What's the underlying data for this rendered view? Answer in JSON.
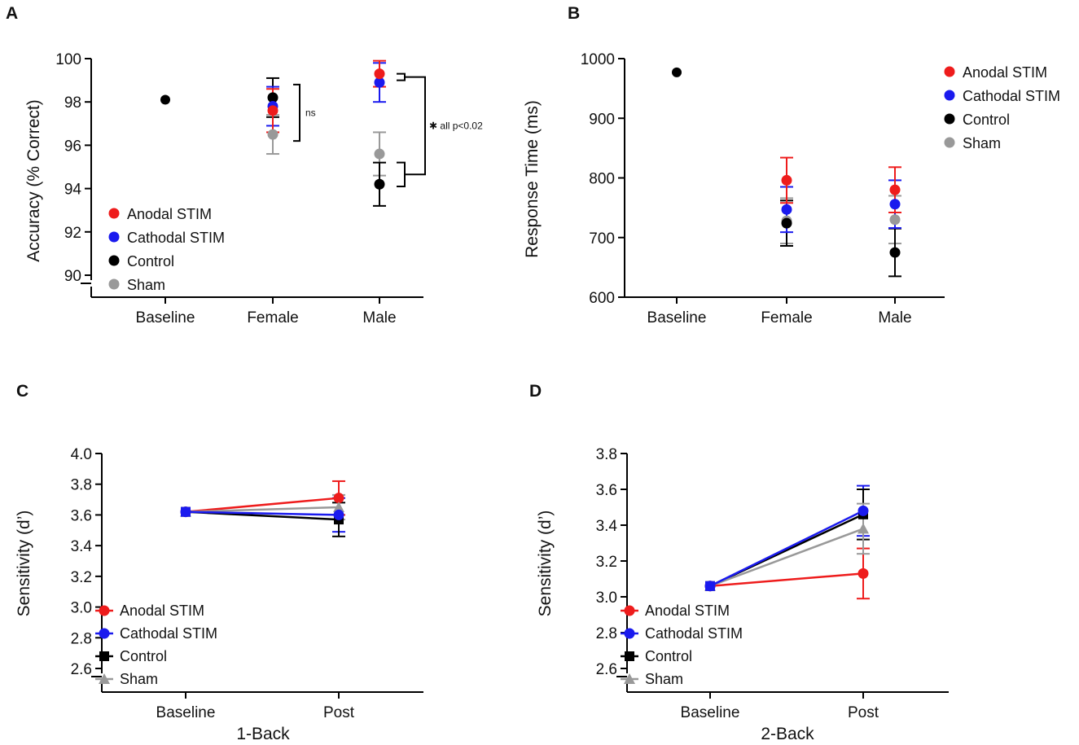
{
  "colors": {
    "Anodal STIM": "#ee1c1c",
    "Cathodal STIM": "#1a1aee",
    "Control": "#000000",
    "Sham": "#999999"
  },
  "chart_data": [
    {
      "panel": "A",
      "type": "scatter",
      "ylabel": "Accuracy (% Correct)",
      "xlabel": "",
      "categories": [
        "Baseline",
        "Female",
        "Male"
      ],
      "ylim": [
        90,
        100
      ],
      "yticks": [
        90,
        92,
        94,
        96,
        98,
        100
      ],
      "axis_break": true,
      "legend": [
        "Anodal STIM",
        "Cathodal STIM",
        "Control",
        "Sham"
      ],
      "legend_position": "bottom-left",
      "baseline": {
        "value": 98.1
      },
      "series": [
        {
          "name": "Anodal STIM",
          "values": [
            null,
            97.6,
            99.3
          ],
          "errors": [
            null,
            1.0,
            0.6
          ]
        },
        {
          "name": "Cathodal STIM",
          "values": [
            null,
            97.8,
            98.9
          ],
          "errors": [
            null,
            0.9,
            0.9
          ]
        },
        {
          "name": "Control",
          "values": [
            null,
            98.2,
            94.2
          ],
          "errors": [
            null,
            0.9,
            1.0
          ]
        },
        {
          "name": "Sham",
          "values": [
            null,
            96.5,
            95.6
          ],
          "errors": [
            null,
            0.9,
            1.0
          ]
        }
      ],
      "annotations": [
        {
          "text": "ns",
          "category": "Female"
        },
        {
          "text": "✱ all p<0.02",
          "category": "Male"
        }
      ]
    },
    {
      "panel": "B",
      "type": "scatter",
      "ylabel": "Response Time (ms)",
      "xlabel": "",
      "categories": [
        "Baseline",
        "Female",
        "Male"
      ],
      "ylim": [
        600,
        1000
      ],
      "yticks": [
        600,
        700,
        800,
        900,
        1000
      ],
      "axis_break": false,
      "legend": [
        "Anodal STIM",
        "Cathodal STIM",
        "Control",
        "Sham"
      ],
      "legend_position": "top-right",
      "baseline": {
        "value": 977
      },
      "series": [
        {
          "name": "Anodal STIM",
          "values": [
            null,
            796,
            780
          ],
          "errors": [
            null,
            38,
            38
          ]
        },
        {
          "name": "Cathodal STIM",
          "values": [
            null,
            747,
            756
          ],
          "errors": [
            null,
            38,
            40
          ]
        },
        {
          "name": "Control",
          "values": [
            null,
            724,
            675
          ],
          "errors": [
            null,
            38,
            40
          ]
        },
        {
          "name": "Sham",
          "values": [
            null,
            728,
            730
          ],
          "errors": [
            null,
            38,
            40
          ]
        }
      ]
    },
    {
      "panel": "C",
      "type": "line",
      "ylabel": "Sensitivity (d’)",
      "xlabel": "1-Back",
      "categories": [
        "Baseline",
        "Post"
      ],
      "ylim": [
        2.6,
        4.0
      ],
      "yticks": [
        2.6,
        2.8,
        3.0,
        3.2,
        3.4,
        3.6,
        3.8,
        4.0
      ],
      "axis_break": true,
      "legend": [
        "Anodal STIM",
        "Cathodal STIM",
        "Control",
        "Sham"
      ],
      "legend_position": "bottom-left",
      "series": [
        {
          "name": "Anodal STIM",
          "values": [
            3.62,
            3.71
          ],
          "errors": [
            0,
            0.11
          ]
        },
        {
          "name": "Cathodal STIM",
          "values": [
            3.62,
            3.6
          ],
          "errors": [
            0,
            0.11
          ]
        },
        {
          "name": "Control",
          "values": [
            3.62,
            3.57
          ],
          "errors": [
            0,
            0.11
          ]
        },
        {
          "name": "Sham",
          "values": [
            3.62,
            3.65
          ],
          "errors": [
            0,
            0.08
          ]
        }
      ]
    },
    {
      "panel": "D",
      "type": "line",
      "ylabel": "Sensitivity (d’)",
      "xlabel": "2-Back",
      "categories": [
        "Baseline",
        "Post"
      ],
      "ylim": [
        2.6,
        3.8
      ],
      "yticks": [
        2.6,
        2.8,
        3.0,
        3.2,
        3.4,
        3.6,
        3.8
      ],
      "axis_break": true,
      "legend": [
        "Anodal STIM",
        "Cathodal STIM",
        "Control",
        "Sham"
      ],
      "legend_position": "bottom-left",
      "series": [
        {
          "name": "Anodal STIM",
          "values": [
            3.06,
            3.13
          ],
          "errors": [
            0,
            0.14
          ]
        },
        {
          "name": "Cathodal STIM",
          "values": [
            3.06,
            3.48
          ],
          "errors": [
            0,
            0.14
          ]
        },
        {
          "name": "Control",
          "values": [
            3.06,
            3.46
          ],
          "errors": [
            0,
            0.14
          ]
        },
        {
          "name": "Sham",
          "values": [
            3.06,
            3.38
          ],
          "errors": [
            0,
            0.14
          ]
        }
      ]
    }
  ]
}
